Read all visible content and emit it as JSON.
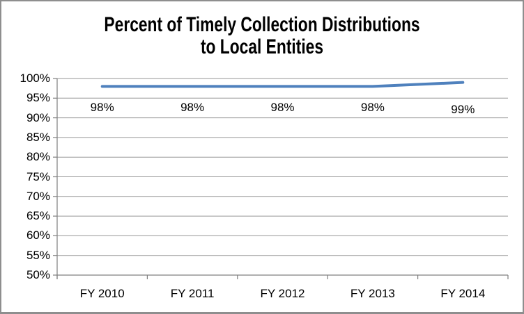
{
  "chart": {
    "title_line1": "Percent of Timely Collection Distributions",
    "title_line2": "to Local Entities"
  },
  "chart_data": {
    "type": "line",
    "title": "Percent of Timely Collection Distributions to Local Entities",
    "categories": [
      "FY 2010",
      "FY 2011",
      "FY 2012",
      "FY 2013",
      "FY 2014"
    ],
    "series": [
      {
        "name": "Percent of Timely Collection Distributions to Local Entities",
        "values": [
          98,
          98,
          98,
          98,
          99
        ]
      }
    ],
    "data_labels": [
      "98%",
      "98%",
      "98%",
      "98%",
      "99%"
    ],
    "data_label_dy": [
      0,
      0,
      0,
      0,
      3
    ],
    "y_ticks": [
      100,
      95,
      90,
      85,
      80,
      75,
      70,
      65,
      60,
      55,
      50
    ],
    "y_tick_labels": [
      "100%",
      "95%",
      "90%",
      "85%",
      "80%",
      "75%",
      "70%",
      "65%",
      "60%",
      "55%",
      "50%"
    ],
    "ylim": [
      50,
      100
    ],
    "xlabel": "",
    "ylabel": "",
    "grid": "horizontal",
    "legend": "none",
    "colors": {
      "line": "#4F81BD",
      "gridline": "#969696",
      "axis": "#7f7f7f",
      "text": "#000000",
      "background": "#FFFFFF",
      "border": "#8E8E8E"
    }
  }
}
